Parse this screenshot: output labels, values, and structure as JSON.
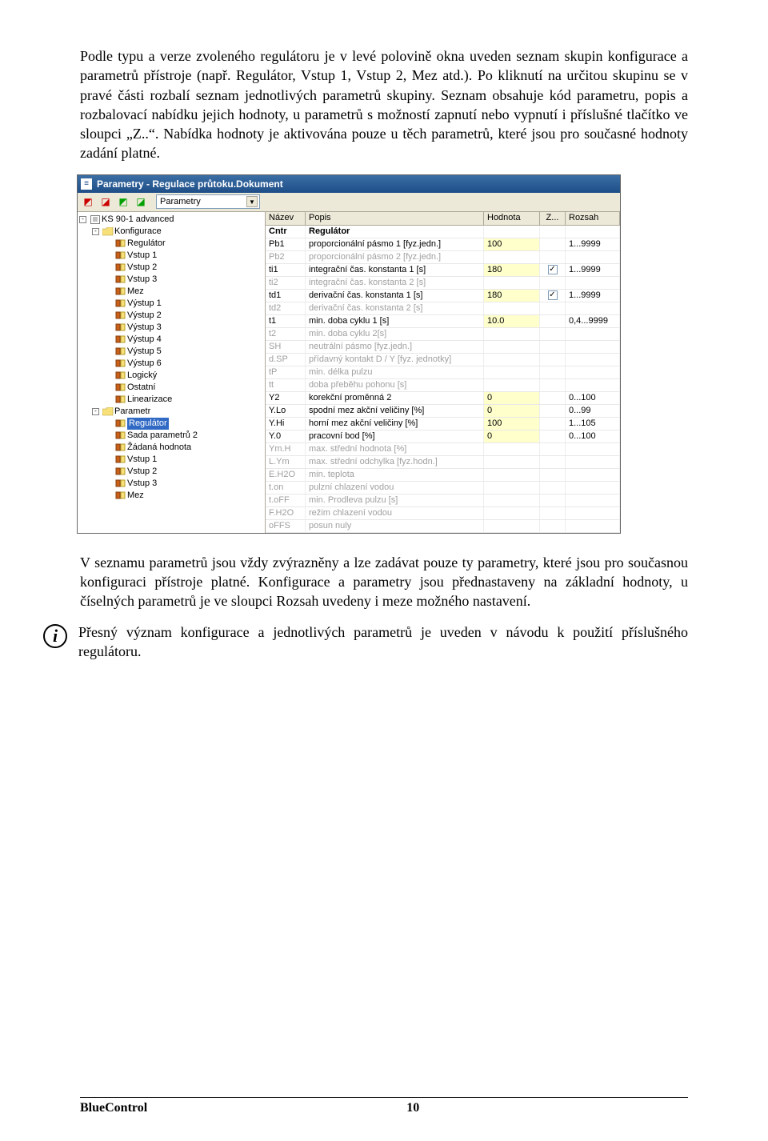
{
  "paragraphs": {
    "p1": "Podle typu a verze zvoleného regulátoru je v levé polovině okna uveden seznam skupin konfigurace a parametrů přístroje (např. Regulátor, Vstup 1, Vstup 2, Mez atd.). Po kliknutí na určitou skupinu se v pravé části rozbalí seznam jednotlivých parametrů skupiny. Seznam obsahuje kód parametru, popis a rozbalovací nabídku jejich hodnoty, u parametrů s možností zapnutí nebo vypnutí i příslušné tlačítko ve sloupci „Z..“. Nabídka hodnoty je aktivována pouze u těch parametrů, které jsou pro současné hodnoty zadání platné.",
    "p2": "V seznamu parametrů jsou vždy zvýrazněny a lze zadávat pouze ty parametry, které jsou pro současnou konfiguraci přístroje platné. Konfigurace a parametry jsou přednastaveny na základní hodnoty, u číselných parametrů je ve sloupci Rozsah uvedeny i meze možného nastavení.",
    "p3": "Přesný význam konfigurace a jednotlivých parametrů je uveden v návodu k použití příslušného regulátoru."
  },
  "window": {
    "title": "Parametry - Regulace průtoku.Dokument",
    "combo": "Parametry"
  },
  "tree": {
    "root": "KS 90-1 advanced",
    "groups": [
      {
        "label": "Konfigurace",
        "children": [
          "Regulátor",
          "Vstup 1",
          "Vstup 2",
          "Vstup 3",
          "Mez",
          "Výstup 1",
          "Výstup 2",
          "Výstup 3",
          "Výstup 4",
          "Výstup 5",
          "Výstup 6",
          "Logický",
          "Ostatní",
          "Linearizace"
        ]
      },
      {
        "label": "Parametr",
        "children": [
          {
            "label": "Regulátor",
            "sel": true
          },
          "Sada parametrů 2",
          "Žádaná hodnota",
          "Vstup 1",
          "Vstup 2",
          "Vstup 3",
          "Mez"
        ]
      }
    ]
  },
  "grid": {
    "columns": {
      "name": "Název",
      "desc": "Popis",
      "val": "Hodnota",
      "z": "Z...",
      "rng": "Rozsah"
    },
    "headerRow": {
      "name": "Cntr",
      "desc": "Regulátor"
    },
    "rows": [
      {
        "name": "Pb1",
        "desc": "proporcionální pásmo 1 [fyz.jedn.]",
        "val": "100",
        "z": false,
        "rng": "1...9999",
        "en": true,
        "chk": false
      },
      {
        "name": "Pb2",
        "desc": "proporcionální pásmo 2 [fyz.jedn.]",
        "val": "",
        "z": null,
        "rng": "",
        "en": false,
        "chk": false
      },
      {
        "name": "ti1",
        "desc": "integrační čas. konstanta 1 [s]",
        "val": "180",
        "z": true,
        "rng": "1...9999",
        "en": true,
        "chk": true
      },
      {
        "name": "ti2",
        "desc": "integrační čas. konstanta 2 [s]",
        "val": "",
        "z": null,
        "rng": "",
        "en": false,
        "chk": false
      },
      {
        "name": "td1",
        "desc": "derivační čas. konstanta 1 [s]",
        "val": "180",
        "z": true,
        "rng": "1...9999",
        "en": true,
        "chk": true
      },
      {
        "name": "td2",
        "desc": "derivační čas. konstanta 2 [s]",
        "val": "",
        "z": null,
        "rng": "",
        "en": false,
        "chk": false
      },
      {
        "name": "t1",
        "desc": "min. doba cyklu 1 [s]",
        "val": "10.0",
        "z": false,
        "rng": "0,4...9999",
        "en": true,
        "chk": false
      },
      {
        "name": "t2",
        "desc": "min. doba cyklu 2[s]",
        "val": "",
        "z": null,
        "rng": "",
        "en": false,
        "chk": false
      },
      {
        "name": "SH",
        "desc": "neutrální pásmo [fyz.jedn.]",
        "val": "",
        "z": null,
        "rng": "",
        "en": false,
        "chk": false
      },
      {
        "name": "d.SP",
        "desc": "přídavný kontakt D / Y [fyz. jednotky]",
        "val": "",
        "z": null,
        "rng": "",
        "en": false,
        "chk": false
      },
      {
        "name": "tP",
        "desc": "min. délka pulzu",
        "val": "",
        "z": null,
        "rng": "",
        "en": false,
        "chk": false
      },
      {
        "name": "tt",
        "desc": "doba přeběhu pohonu [s]",
        "val": "",
        "z": null,
        "rng": "",
        "en": false,
        "chk": false
      },
      {
        "name": "Y2",
        "desc": "korekční proměnná 2",
        "val": "0",
        "z": false,
        "rng": "0...100",
        "en": true,
        "chk": false
      },
      {
        "name": "Y.Lo",
        "desc": "spodní mez akční veličiny [%]",
        "val": "0",
        "z": false,
        "rng": "0...99",
        "en": true,
        "chk": false
      },
      {
        "name": "Y.Hi",
        "desc": "horní mez akční veličiny [%]",
        "val": "100",
        "z": false,
        "rng": "1...105",
        "en": true,
        "chk": false
      },
      {
        "name": "Y.0",
        "desc": "pracovní bod [%]",
        "val": "0",
        "z": false,
        "rng": "0...100",
        "en": true,
        "chk": false
      },
      {
        "name": "Ym.H",
        "desc": "max. střední hodnota [%]",
        "val": "",
        "z": null,
        "rng": "",
        "en": false,
        "chk": false
      },
      {
        "name": "L.Ym",
        "desc": "max. střední odchylka [fyz.hodn.]",
        "val": "",
        "z": null,
        "rng": "",
        "en": false,
        "chk": false
      },
      {
        "name": "E.H2O",
        "desc": "min. teplota",
        "val": "",
        "z": null,
        "rng": "",
        "en": false,
        "chk": false
      },
      {
        "name": "t.on",
        "desc": "pulzní chlazení vodou",
        "val": "",
        "z": null,
        "rng": "",
        "en": false,
        "chk": false
      },
      {
        "name": "t.oFF",
        "desc": "min. Prodleva pulzu [s]",
        "val": "",
        "z": null,
        "rng": "",
        "en": false,
        "chk": false
      },
      {
        "name": "F.H2O",
        "desc": "režim chlazení vodou",
        "val": "",
        "z": null,
        "rng": "",
        "en": false,
        "chk": false
      },
      {
        "name": "oFFS",
        "desc": "posun nuly",
        "val": "",
        "z": null,
        "rng": "",
        "en": false,
        "chk": false
      }
    ]
  },
  "footer": {
    "product": "BlueControl",
    "page": "10"
  }
}
